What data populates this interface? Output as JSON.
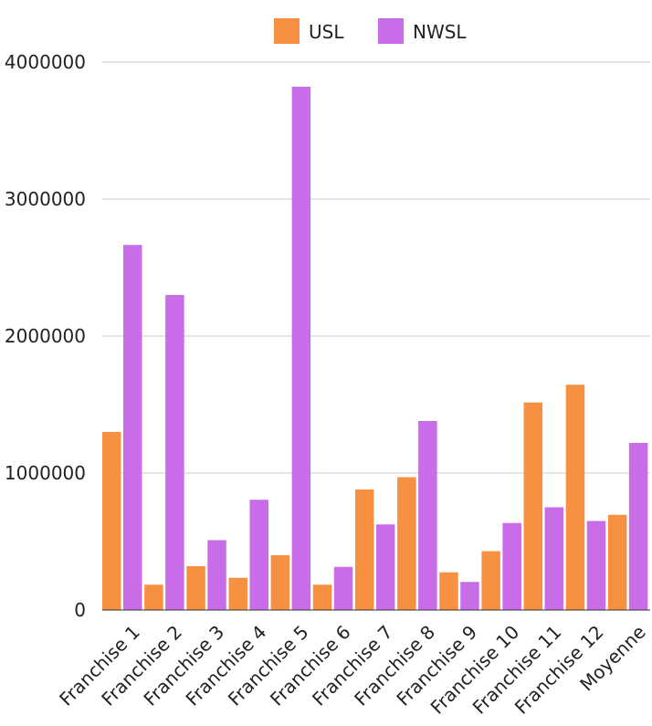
{
  "chart_data": {
    "type": "bar",
    "categories": [
      "Franchise 1",
      "Franchise 2",
      "Franchise 3",
      "Franchise 4",
      "Franchise 5",
      "Franchise 6",
      "Franchise 7",
      "Franchise 8",
      "Franchise 9",
      "Franchise 10",
      "Franchise 11",
      "Franchise 12",
      "Moyenne"
    ],
    "series": [
      {
        "name": "USL",
        "color": "#f79141",
        "values": [
          1300000,
          185000,
          320000,
          235000,
          400000,
          185000,
          880000,
          970000,
          275000,
          430000,
          1515000,
          1645000,
          695000
        ]
      },
      {
        "name": "NWSL",
        "color": "#c96ce8",
        "values": [
          2665000,
          2300000,
          510000,
          805000,
          3820000,
          315000,
          625000,
          1380000,
          205000,
          635000,
          750000,
          650000,
          1220000
        ]
      }
    ],
    "ylim": [
      0,
      4000000
    ],
    "yticks": [
      0,
      1000000,
      2000000,
      3000000,
      4000000
    ],
    "ytick_labels": [
      "0",
      "1000000",
      "2000000",
      "3000000",
      "4000000"
    ],
    "grid": true,
    "legend": "top-center"
  }
}
